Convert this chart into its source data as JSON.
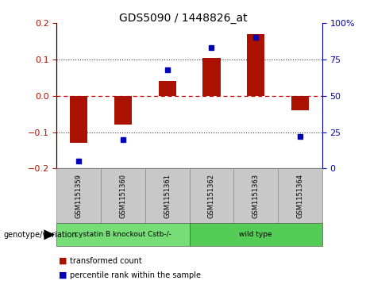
{
  "title": "GDS5090 / 1448826_at",
  "samples": [
    "GSM1151359",
    "GSM1151360",
    "GSM1151361",
    "GSM1151362",
    "GSM1151363",
    "GSM1151364"
  ],
  "bar_values": [
    -0.13,
    -0.08,
    0.04,
    0.105,
    0.17,
    -0.04
  ],
  "dot_values": [
    5,
    20,
    68,
    83,
    90,
    22
  ],
  "ylim_left": [
    -0.2,
    0.2
  ],
  "ylim_right": [
    0,
    100
  ],
  "bar_color": "#aa1100",
  "dot_color": "#0000bb",
  "yticks_left": [
    -0.2,
    -0.1,
    0,
    0.1,
    0.2
  ],
  "yticks_right": [
    0,
    25,
    50,
    75,
    100
  ],
  "ytick_labels_right": [
    "0",
    "25",
    "50",
    "75",
    "100%"
  ],
  "grid_vals": [
    -0.1,
    0.0,
    0.1
  ],
  "zero_line_color": "#cc0000",
  "groups": [
    {
      "label": "cystatin B knockout Cstb-/-",
      "indices": [
        0,
        1,
        2
      ],
      "color": "#77dd77"
    },
    {
      "label": "wild type",
      "indices": [
        3,
        4,
        5
      ],
      "color": "#55cc55"
    }
  ],
  "group_row_label": "genotype/variation",
  "legend_items": [
    {
      "color": "#aa1100",
      "label": "transformed count"
    },
    {
      "color": "#0000bb",
      "label": "percentile rank within the sample"
    }
  ],
  "background_color": "#ffffff",
  "sample_box_color": "#c8c8c8",
  "bar_width": 0.4
}
